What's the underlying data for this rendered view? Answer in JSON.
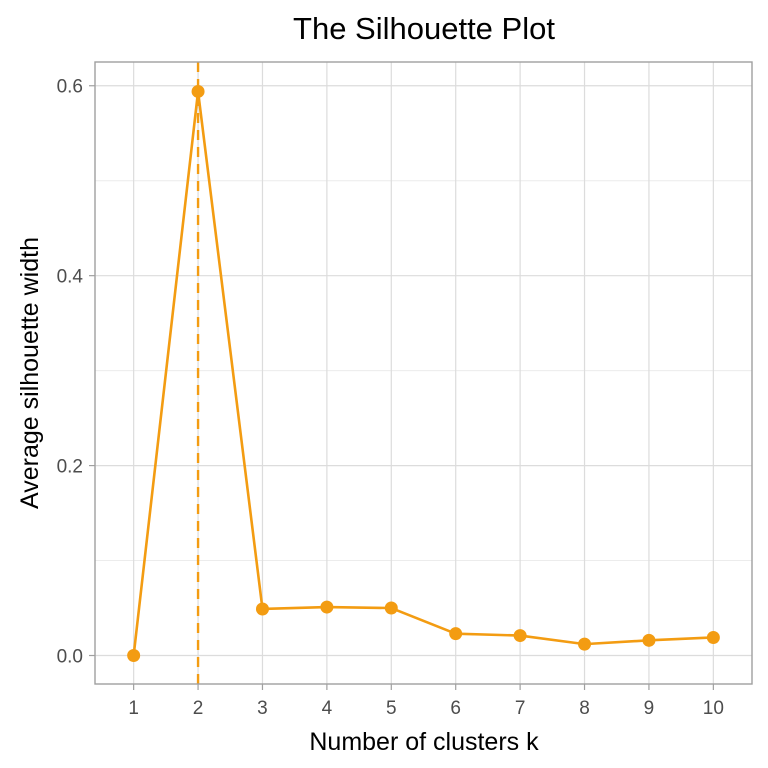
{
  "chart_data": {
    "type": "line",
    "title": "The Silhouette Plot",
    "xlabel": "Number of clusters k",
    "ylabel": "Average silhouette width",
    "x": [
      1,
      2,
      3,
      4,
      5,
      6,
      7,
      8,
      9,
      10
    ],
    "x_tick_labels": [
      "1",
      "2",
      "3",
      "4",
      "5",
      "6",
      "7",
      "8",
      "9",
      "10"
    ],
    "y_ticks": [
      0.0,
      0.2,
      0.4,
      0.6
    ],
    "y_tick_labels": [
      "0.0",
      "0.2",
      "0.4",
      "0.6"
    ],
    "xlim": [
      0.4,
      10.6
    ],
    "ylim": [
      -0.03,
      0.625
    ],
    "series": [
      {
        "values": [
          0.0,
          0.594,
          0.049,
          0.051,
          0.05,
          0.023,
          0.021,
          0.012,
          0.016,
          0.019
        ],
        "color": "#f39c12"
      }
    ],
    "reference_line": {
      "axis": "x",
      "value": 2,
      "style": "dashed",
      "color": "#f39c12"
    },
    "grid": true,
    "panel_border_color": "#a0a0a0",
    "grid_color": "#dcdcdc"
  }
}
